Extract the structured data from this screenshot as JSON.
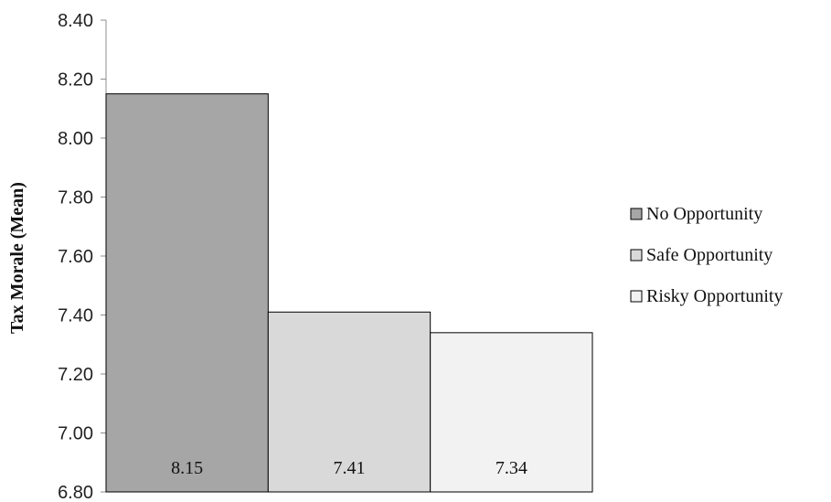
{
  "chart_data": {
    "type": "bar",
    "title": "",
    "xlabel": "",
    "ylabel": "Tax Morale (Mean)",
    "ylim": [
      6.8,
      8.4
    ],
    "y_ticks": [
      "6.80",
      "7.00",
      "7.20",
      "7.40",
      "7.60",
      "7.80",
      "8.00",
      "8.20",
      "8.40"
    ],
    "grid": false,
    "legend_position": "right",
    "series": [
      {
        "name": "No Opportunity",
        "value": 8.15,
        "label": "8.15",
        "color": "#a6a6a6"
      },
      {
        "name": "Safe Opportunity",
        "value": 7.41,
        "label": "7.41",
        "color": "#d9d9d9"
      },
      {
        "name": "Risky Opportunity",
        "value": 7.34,
        "label": "7.34",
        "color": "#f2f2f2"
      }
    ]
  }
}
